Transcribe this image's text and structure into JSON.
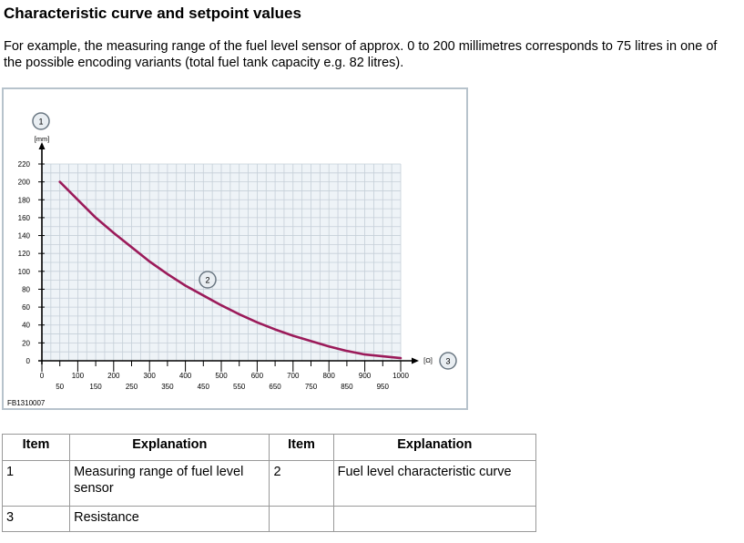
{
  "heading": "Characteristic curve and setpoint values",
  "intro": "For example, the measuring range of the fuel level sensor of approx. 0 to 200 millimetres corresponds to 75 litres in one of the possible encoding variants (total fuel tank capacity e.g. 82 litres).",
  "figure": {
    "code": "FB1310007",
    "marker1": "1",
    "marker2": "2",
    "marker3": "3",
    "accent_color": "#9b1b5a",
    "grid_color": "#c5cfd8",
    "plot_bg": "#eef3f7"
  },
  "chart_data": {
    "type": "line",
    "ylabel": "[mm]",
    "xlabel": "[Ω]",
    "xlim": [
      0,
      1000
    ],
    "ylim": [
      0,
      220
    ],
    "x_ticks": [
      0,
      50,
      100,
      150,
      200,
      250,
      300,
      350,
      400,
      450,
      500,
      550,
      600,
      650,
      700,
      750,
      800,
      850,
      900,
      950,
      1000
    ],
    "y_ticks": [
      0,
      20,
      40,
      60,
      80,
      100,
      120,
      140,
      160,
      180,
      200,
      220
    ],
    "grid": true,
    "series": [
      {
        "x": [
          50,
          100,
          150,
          200,
          250,
          300,
          350,
          400,
          450,
          500,
          550,
          600,
          650,
          700,
          750,
          800,
          850,
          900,
          950,
          1000
        ],
        "y": [
          200,
          180,
          160,
          143,
          127,
          111,
          97,
          84,
          73,
          62,
          52,
          43,
          35,
          28,
          22,
          16,
          11,
          7,
          5,
          3
        ]
      }
    ]
  },
  "table": {
    "headers": [
      "Item",
      "Explanation",
      "Item",
      "Explanation"
    ],
    "rows": [
      [
        "1",
        "Measuring range of fuel level sensor",
        "2",
        "Fuel level characteristic curve"
      ],
      [
        "3",
        "Resistance",
        "",
        ""
      ]
    ]
  }
}
